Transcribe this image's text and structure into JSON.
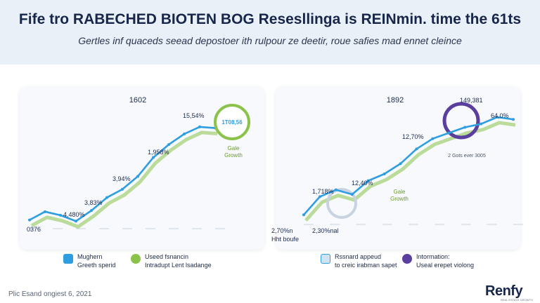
{
  "header": {
    "title": "Fife tro RABECHED BIOTEN BOG Resesllinga is REINmin. time the 61ts",
    "subtitle": "Gertles inf quaceds seead depostoer ith rulpour ze deetir, roue safies mad ennet cleince"
  },
  "colors": {
    "line": "#2e9ee0",
    "green": "#8bc34a",
    "purple": "#5a3f9e",
    "header_bg": "#e9f0f7"
  },
  "chart_data": [
    {
      "type": "line",
      "title": "1602",
      "y_labels_shown": [
        "0376",
        "4,480%",
        "3,83%",
        "3,94%",
        "1,958%",
        "15,54%"
      ],
      "annotations": [
        "Gale Growth",
        "1T08,56"
      ],
      "series": [
        {
          "values": [
            0.05,
            0.12,
            0.09,
            0.04,
            0.13,
            0.24,
            0.31,
            0.42,
            0.58,
            0.69,
            0.78,
            0.84,
            0.83
          ]
        }
      ]
    },
    {
      "type": "line",
      "title": "1892",
      "y_labels_shown": [
        "2,70%",
        "1,718%",
        "12,40%",
        "12,70%",
        "149,381",
        "64,0%",
        "2,30%"
      ],
      "annotations": [
        "Gale Growth",
        "2 Gots ever 3005"
      ],
      "series": [
        {
          "values": [
            0.06,
            0.22,
            0.28,
            0.24,
            0.36,
            0.42,
            0.51,
            0.64,
            0.73,
            0.78,
            0.83,
            0.86,
            0.92,
            0.9
          ]
        }
      ]
    }
  ],
  "panels": {
    "left": {
      "top_label": "1602",
      "axis_label": "0376",
      "point_labels": [
        "4,480%",
        "3,83%",
        "3,94%",
        "1,958%",
        "15,54%"
      ],
      "badge_text": "1T08,56",
      "growth_label_1": "Gale",
      "growth_label_2": "Growth"
    },
    "right": {
      "top_label": "1892",
      "axis_label": "2,70%n",
      "axis_label_2": "Hht boufe",
      "bottom_label": "2,30%nal",
      "point_labels": [
        "1,718%",
        "12,40%",
        "12,70%",
        "149,381",
        "64,0%"
      ],
      "small_note": "2 Gots ever 3005",
      "growth_label_1": "Gale",
      "growth_label_2": "Growth"
    }
  },
  "legend": {
    "left_1_a": "Mughern",
    "left_1_b": "Greeth sperid",
    "left_2_a": "Useed fsnancin",
    "left_2_b": "Intradupt Lent lsadange",
    "right_1_a": "Rssnard appeud",
    "right_1_b": "to creic irabman sapet",
    "right_2_a": "Intormation:",
    "right_2_b": "Useal erepet violong"
  },
  "footer": {
    "date_text": "Plic Esand ongiest 6, 2021",
    "logo": "Renfy",
    "logo_sub": "REAL ESTATE GROWTH"
  }
}
